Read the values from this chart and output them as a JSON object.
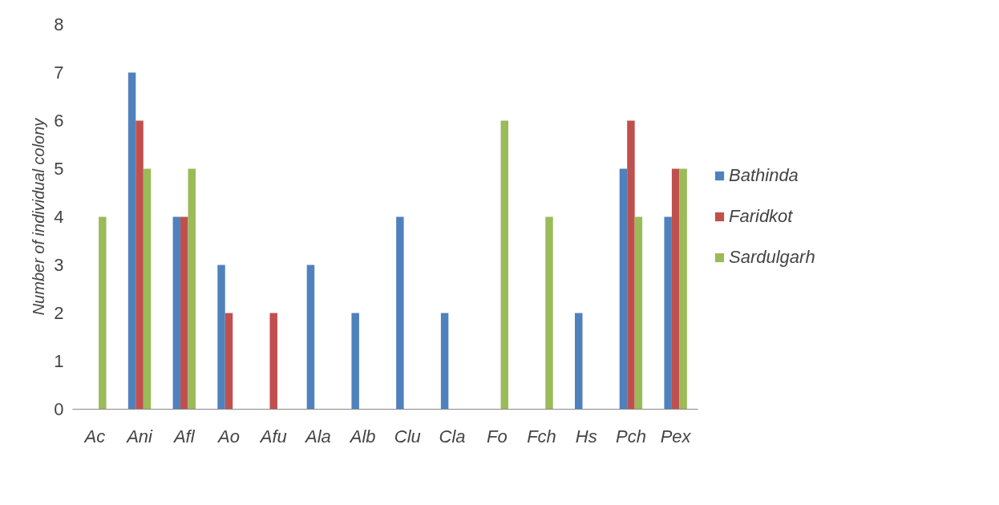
{
  "chart_data": {
    "type": "bar",
    "ylabel": "Number of individual colony",
    "categories": [
      "Ac",
      "Ani",
      "Afl",
      "Ao",
      "Afu",
      "Ala",
      "Alb",
      "Clu",
      "Cla",
      "Fo",
      "Fch",
      "Hs",
      "Pch",
      "Pex"
    ],
    "series": [
      {
        "name": "Bathinda",
        "color": "#4f81bd",
        "values": [
          0,
          7,
          4,
          3,
          0,
          3,
          2,
          4,
          2,
          0,
          0,
          2,
          5,
          4
        ]
      },
      {
        "name": "Faridkot",
        "color": "#c0504d",
        "values": [
          0,
          6,
          4,
          2,
          2,
          0,
          0,
          0,
          0,
          0,
          0,
          0,
          6,
          5
        ]
      },
      {
        "name": "Sardulgarh",
        "color": "#9bbb59",
        "values": [
          4,
          5,
          5,
          0,
          0,
          0,
          0,
          0,
          0,
          6,
          4,
          0,
          4,
          5
        ]
      }
    ],
    "ylim": [
      0,
      8
    ],
    "yticks": [
      0,
      1,
      2,
      3,
      4,
      5,
      6,
      7,
      8
    ],
    "grid": false,
    "legend": "right"
  }
}
